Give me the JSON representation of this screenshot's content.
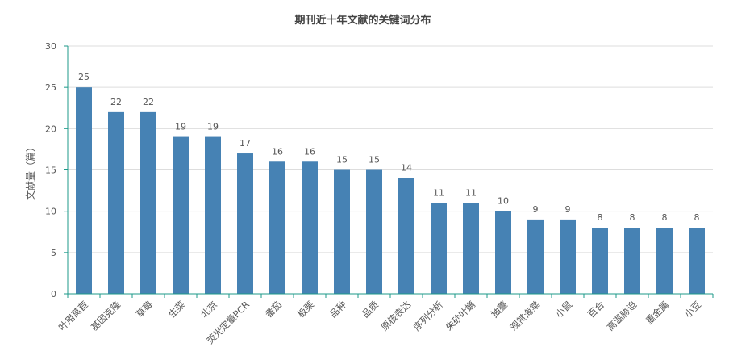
{
  "chart_data": {
    "type": "bar",
    "title": "期刊近十年文献的关键词分布",
    "xlabel": "",
    "ylabel": "文献量（篇）",
    "ylim": [
      0,
      30
    ],
    "yticks": [
      0,
      5,
      10,
      15,
      20,
      25,
      30
    ],
    "grid": true,
    "legend": "none",
    "categories": [
      "叶用莴苣",
      "基因克隆",
      "草莓",
      "生菜",
      "北京",
      "荧光定量PCR",
      "番茄",
      "板栗",
      "品种",
      "品质",
      "原核表达",
      "序列分析",
      "朱砂叶螨",
      "抽薹",
      "观赏海棠",
      "小鼠",
      "百合",
      "高温胁迫",
      "重金属",
      "小豆"
    ],
    "series": [
      {
        "values": [
          25,
          22,
          22,
          19,
          19,
          17,
          16,
          16,
          15,
          15,
          14,
          11,
          11,
          10,
          9,
          9,
          8,
          8,
          8,
          8
        ]
      }
    ],
    "colors": {
      "bar": "#4682b4",
      "axis": "#1c9a8a",
      "grid": "#dddddd",
      "text": "#555555"
    }
  }
}
